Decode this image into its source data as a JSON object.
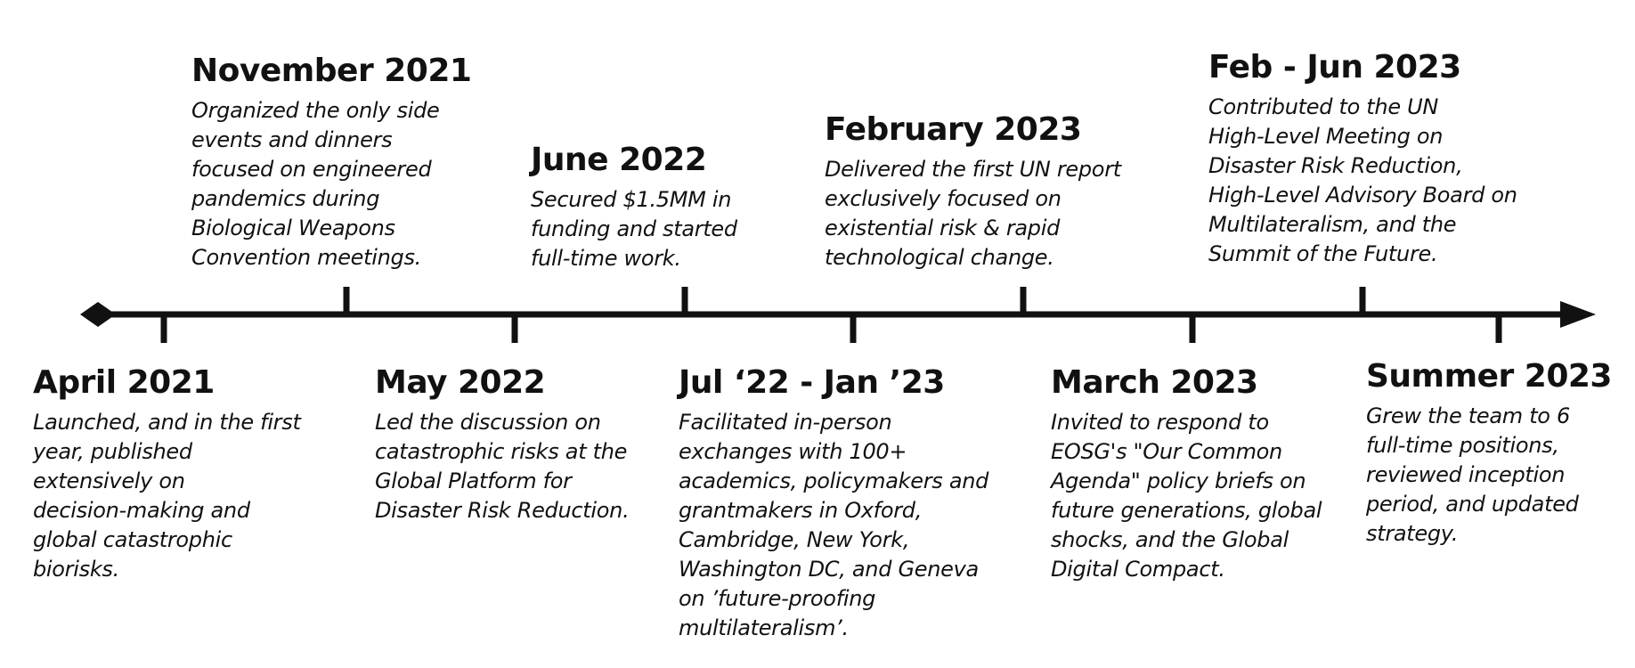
{
  "events_above": [
    {
      "title": "November 2021",
      "lines": [
        "Organized the only side",
        "events and dinners",
        "focused on engineered",
        "pandemics during",
        "Biological Weapons",
        "Convention meetings."
      ]
    },
    {
      "title": "June 2022",
      "lines": [
        "Secured $1.5MM in",
        "funding and started",
        "full-time work."
      ]
    },
    {
      "title": "February 2023",
      "lines": [
        "Delivered the first UN report",
        "exclusively focused on",
        "existential risk & rapid",
        "technological change."
      ]
    },
    {
      "title": "Feb - Jun 2023",
      "lines": [
        "Contributed to the UN",
        "High-Level Meeting on",
        "Disaster Risk Reduction,",
        "High-Level Advisory Board on",
        "Multilateralism, and the",
        "Summit of the Future."
      ]
    }
  ],
  "events_below": [
    {
      "title": "April 2021",
      "lines": [
        "Launched, and in the first",
        "year, published",
        "extensively on",
        "decision-making and",
        "global catastrophic",
        "biorisks."
      ]
    },
    {
      "title": "May 2022",
      "lines": [
        "Led the discussion on",
        "catastrophic risks at the",
        "Global Platform for",
        "Disaster Risk Reduction."
      ]
    },
    {
      "title": "Jul ‘22 - Jan ’23",
      "lines": [
        "Facilitated in-person",
        "exchanges with 100+",
        "academics, policymakers and",
        "grantmakers in Oxford,",
        "Cambridge, New York,",
        "Washington DC, and Geneva",
        "on ’future-proofing",
        "multilateralism’."
      ]
    },
    {
      "title": "March 2023",
      "lines": [
        "Invited to respond to",
        "EOSG's \"Our Common",
        "Agenda\" policy briefs on",
        "future generations, global",
        "shocks, and the Global",
        "Digital Compact."
      ]
    },
    {
      "title": "Summer 2023",
      "lines": [
        "Grew the team to 6",
        "full-time positions,",
        "reviewed inception",
        "period, and updated",
        "strategy."
      ]
    }
  ],
  "colors": {
    "line": "#111111",
    "text": "#111111",
    "background": "#ffffff"
  }
}
